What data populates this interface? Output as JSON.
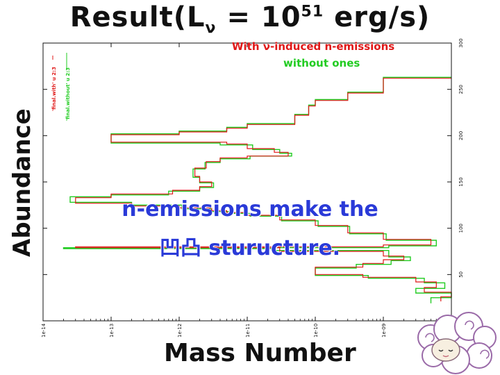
{
  "slide": {
    "title_prefix": "Result(L",
    "title_sub": "ν",
    "title_mid": " = 10",
    "title_sup": "51",
    "title_suffix": " erg/s)"
  },
  "legend": {
    "with_label": "With ν-induced n-emissions",
    "without_label": "without ones",
    "with_color": "#e01818",
    "without_color": "#22cc22"
  },
  "annotation": {
    "line1": "n-emissions make the",
    "line2": "凹凸 sturucture."
  },
  "chart_data": {
    "type": "line",
    "title": "Result(Lν = 10^51 erg/s)",
    "xlabel": "Mass Number",
    "ylabel": "Abundance",
    "inner_legend": [
      "'final.with' u 2:3",
      "'final.without' u 2:3"
    ],
    "x_axis": {
      "scale": "log",
      "range": [
        1e-14,
        1e-08
      ],
      "tick_labels": [
        "1e-14",
        "1e-13",
        "1e-12",
        "1e-11",
        "1e-10",
        "1e-09",
        "1e-08"
      ]
    },
    "y_axis": {
      "range": [
        0,
        300
      ],
      "tick_labels": [
        "0",
        "50",
        "100",
        "150",
        "200",
        "250",
        "300"
      ],
      "position": "right"
    },
    "series": [
      {
        "name": "With ν-induced n-emissions",
        "color": "#e01818",
        "points": [
          [
            1e-08,
            262
          ],
          [
            1e-09,
            246
          ],
          [
            3e-10,
            238
          ],
          [
            1e-10,
            232
          ],
          [
            8e-11,
            222
          ],
          [
            5e-11,
            212
          ],
          [
            1e-11,
            208
          ],
          [
            5e-12,
            204
          ],
          [
            1e-12,
            201
          ],
          [
            1e-13,
            193
          ],
          [
            5e-12,
            191
          ],
          [
            1e-11,
            186
          ],
          [
            2.5e-11,
            182
          ],
          [
            4e-11,
            178
          ],
          [
            1e-11,
            176
          ],
          [
            4e-12,
            172
          ],
          [
            2.5e-12,
            165
          ],
          [
            1.7e-12,
            156
          ],
          [
            2e-12,
            150
          ],
          [
            3e-12,
            145
          ],
          [
            2e-12,
            141
          ],
          [
            8e-13,
            137
          ],
          [
            1e-13,
            133
          ],
          [
            3e-14,
            127
          ],
          [
            2e-13,
            124
          ],
          [
            1e-12,
            122
          ],
          [
            3e-12,
            119
          ],
          [
            5e-12,
            117
          ],
          [
            1e-11,
            114
          ],
          [
            3e-11,
            109
          ],
          [
            1e-10,
            103
          ],
          [
            3e-10,
            95
          ],
          [
            1e-09,
            88
          ],
          [
            5e-09,
            82
          ],
          [
            1e-09,
            80
          ],
          [
            3e-14,
            79
          ],
          [
            3e-11,
            75
          ],
          [
            1e-09,
            70
          ],
          [
            2e-09,
            66
          ],
          [
            1e-09,
            62
          ],
          [
            5e-10,
            58
          ],
          [
            1e-10,
            50
          ],
          [
            5e-10,
            47
          ],
          [
            3e-09,
            42
          ],
          [
            6e-09,
            36
          ],
          [
            4e-09,
            31
          ],
          [
            1e-08,
            26
          ],
          [
            7e-09,
            21
          ]
        ]
      },
      {
        "name": "without ones",
        "color": "#22cc22",
        "points": [
          [
            1e-08,
            263
          ],
          [
            1e-09,
            247
          ],
          [
            3e-10,
            239
          ],
          [
            1e-10,
            233
          ],
          [
            8e-11,
            223
          ],
          [
            5e-11,
            213
          ],
          [
            1e-11,
            209
          ],
          [
            5e-12,
            205
          ],
          [
            1e-12,
            202
          ],
          [
            1e-13,
            192
          ],
          [
            4e-12,
            190
          ],
          [
            1.2e-11,
            185
          ],
          [
            3e-11,
            181
          ],
          [
            4.5e-11,
            178
          ],
          [
            1.1e-11,
            175
          ],
          [
            4e-12,
            171
          ],
          [
            2.4e-12,
            164
          ],
          [
            1.6e-12,
            155
          ],
          [
            2e-12,
            149
          ],
          [
            3.2e-12,
            144
          ],
          [
            2e-12,
            140
          ],
          [
            7e-13,
            136
          ],
          [
            1e-13,
            134
          ],
          [
            2.5e-14,
            128
          ],
          [
            2e-13,
            125
          ],
          [
            1.1e-12,
            121
          ],
          [
            3e-12,
            118
          ],
          [
            5.5e-12,
            116
          ],
          [
            1.1e-11,
            113
          ],
          [
            3.2e-11,
            108
          ],
          [
            1.1e-10,
            102
          ],
          [
            3.2e-10,
            94
          ],
          [
            1.1e-09,
            87
          ],
          [
            6e-09,
            81
          ],
          [
            1.2e-09,
            79
          ],
          [
            2e-14,
            78
          ],
          [
            2.5e-11,
            76
          ],
          [
            1.2e-09,
            69
          ],
          [
            2.5e-09,
            65
          ],
          [
            1.3e-09,
            61
          ],
          [
            4e-10,
            57
          ],
          [
            1e-10,
            49
          ],
          [
            6e-10,
            46
          ],
          [
            4e-09,
            41
          ],
          [
            8e-09,
            35
          ],
          [
            3e-09,
            30
          ],
          [
            1e-08,
            25
          ],
          [
            5e-09,
            19
          ]
        ]
      }
    ],
    "grid": false,
    "legend_position": "top-right"
  }
}
